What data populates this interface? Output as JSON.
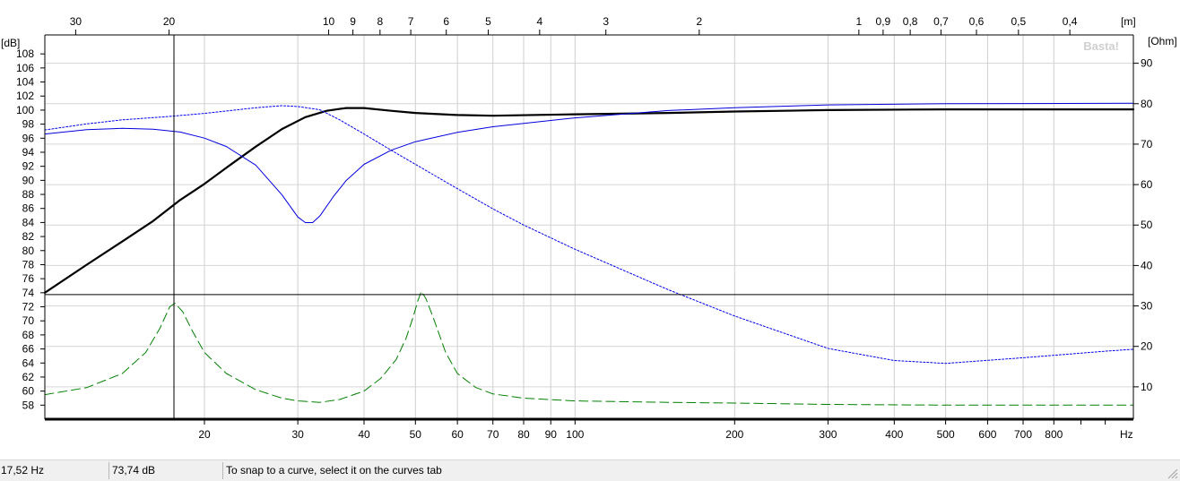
{
  "status_bar": {
    "frequency": "17,52 Hz",
    "level": "73,74 dB",
    "hint": "To snap to a curve, select it on the curves tab"
  },
  "chart_data": {
    "type": "line",
    "grid": true,
    "watermark": "Basta!",
    "x_axis": {
      "scale": "log",
      "unit_label": "Hz",
      "range": [
        10,
        1130
      ],
      "ticks": [
        {
          "value": 20,
          "label": "20"
        },
        {
          "value": 30,
          "label": "30"
        },
        {
          "value": 40,
          "label": "40"
        },
        {
          "value": 50,
          "label": "50"
        },
        {
          "value": 60,
          "label": "60"
        },
        {
          "value": 70,
          "label": "70"
        },
        {
          "value": 80,
          "label": "80"
        },
        {
          "value": 90,
          "label": "90"
        },
        {
          "value": 100,
          "label": "100"
        },
        {
          "value": 200,
          "label": "200"
        },
        {
          "value": 300,
          "label": "300"
        },
        {
          "value": 400,
          "label": "400"
        },
        {
          "value": 500,
          "label": "500"
        },
        {
          "value": 600,
          "label": "600"
        },
        {
          "value": 700,
          "label": "700"
        },
        {
          "value": 800,
          "label": "800"
        }
      ]
    },
    "top_axis": {
      "unit_label": "[m]",
      "note": "wavelength in metres (343/f)",
      "ticks": [
        {
          "value": 30,
          "label": "30"
        },
        {
          "value": 20,
          "label": "20"
        },
        {
          "value": 10,
          "label": "10"
        },
        {
          "value": 9,
          "label": "9"
        },
        {
          "value": 8,
          "label": "8"
        },
        {
          "value": 7,
          "label": "7"
        },
        {
          "value": 6,
          "label": "6"
        },
        {
          "value": 5,
          "label": "5"
        },
        {
          "value": 4,
          "label": "4"
        },
        {
          "value": 3,
          "label": "3"
        },
        {
          "value": 2,
          "label": "2"
        },
        {
          "value": 1,
          "label": "1"
        },
        {
          "value": 0.9,
          "label": "0,9"
        },
        {
          "value": 0.8,
          "label": "0,8"
        },
        {
          "value": 0.7,
          "label": "0,7"
        },
        {
          "value": 0.6,
          "label": "0,6"
        },
        {
          "value": 0.5,
          "label": "0,5"
        },
        {
          "value": 0.4,
          "label": "0,4"
        }
      ]
    },
    "y_left": {
      "unit_label": "[dB]",
      "range": [
        56.0,
        110.7
      ],
      "ticks": [
        58,
        60,
        62,
        64,
        66,
        68,
        70,
        72,
        74,
        76,
        78,
        80,
        82,
        84,
        86,
        88,
        90,
        92,
        94,
        96,
        98,
        100,
        102,
        104,
        106,
        108
      ]
    },
    "y_right": {
      "unit_label": "[Ohm]",
      "range": [
        2.0,
        97.0
      ],
      "ticks": [
        10,
        20,
        30,
        40,
        50,
        60,
        70,
        80,
        90
      ]
    },
    "cursor": {
      "x": 17.52,
      "y": 73.74
    },
    "series": [
      {
        "axis": "left",
        "color": "#000000",
        "style": "solid-thick",
        "points": [
          [
            10,
            74.0
          ],
          [
            12,
            78.0
          ],
          [
            14,
            81.3
          ],
          [
            16,
            84.2
          ],
          [
            18,
            87.2
          ],
          [
            20,
            89.5
          ],
          [
            22,
            91.8
          ],
          [
            25,
            94.8
          ],
          [
            28,
            97.3
          ],
          [
            31,
            99.0
          ],
          [
            34,
            99.9
          ],
          [
            37,
            100.3
          ],
          [
            40,
            100.3
          ],
          [
            45,
            99.9
          ],
          [
            50,
            99.6
          ],
          [
            60,
            99.3
          ],
          [
            70,
            99.2
          ],
          [
            100,
            99.4
          ],
          [
            150,
            99.6
          ],
          [
            200,
            99.8
          ],
          [
            300,
            100.0
          ],
          [
            500,
            100.1
          ],
          [
            1130,
            100.1
          ]
        ]
      },
      {
        "axis": "right",
        "color": "#0000dd",
        "style": "solid",
        "points": [
          [
            10,
            72.5
          ],
          [
            12,
            73.6
          ],
          [
            14,
            73.9
          ],
          [
            16,
            73.7
          ],
          [
            18,
            73.0
          ],
          [
            20,
            71.5
          ],
          [
            22,
            69.4
          ],
          [
            25,
            64.8
          ],
          [
            28,
            57.5
          ],
          [
            30,
            52.0
          ],
          [
            31,
            50.6
          ],
          [
            32,
            50.6
          ],
          [
            33,
            52.2
          ],
          [
            35,
            57.0
          ],
          [
            37,
            61.0
          ],
          [
            40,
            65.0
          ],
          [
            45,
            68.5
          ],
          [
            50,
            70.6
          ],
          [
            60,
            72.9
          ],
          [
            70,
            74.3
          ],
          [
            100,
            76.5
          ],
          [
            150,
            78.3
          ],
          [
            200,
            79.0
          ],
          [
            300,
            79.7
          ],
          [
            500,
            80.0
          ],
          [
            1130,
            80.1
          ]
        ]
      },
      {
        "axis": "right",
        "color": "#0000ee",
        "style": "dotted",
        "points": [
          [
            10,
            73.5
          ],
          [
            12,
            75.0
          ],
          [
            14,
            76.0
          ],
          [
            17,
            76.8
          ],
          [
            20,
            77.6
          ],
          [
            25,
            79.0
          ],
          [
            28,
            79.5
          ],
          [
            30,
            79.3
          ],
          [
            33,
            78.5
          ],
          [
            36,
            76.0
          ],
          [
            40,
            72.5
          ],
          [
            45,
            68.5
          ],
          [
            50,
            65.0
          ],
          [
            60,
            59.0
          ],
          [
            70,
            54.0
          ],
          [
            80,
            50.0
          ],
          [
            100,
            44.0
          ],
          [
            150,
            34.0
          ],
          [
            200,
            27.5
          ],
          [
            300,
            19.5
          ],
          [
            400,
            16.5
          ],
          [
            500,
            15.8
          ],
          [
            700,
            17.2
          ],
          [
            1000,
            18.8
          ],
          [
            1130,
            19.3
          ]
        ]
      },
      {
        "axis": "left",
        "color": "#008000",
        "style": "dashed",
        "points": [
          [
            10,
            59.5
          ],
          [
            12,
            60.5
          ],
          [
            14,
            62.5
          ],
          [
            15.5,
            65.5
          ],
          [
            16.5,
            69.0
          ],
          [
            17.2,
            72.0
          ],
          [
            17.6,
            72.5
          ],
          [
            18.2,
            71.3
          ],
          [
            19,
            68.5
          ],
          [
            20,
            65.5
          ],
          [
            22,
            62.5
          ],
          [
            25,
            60.2
          ],
          [
            28,
            59.0
          ],
          [
            30,
            58.6
          ],
          [
            33,
            58.4
          ],
          [
            36,
            58.8
          ],
          [
            40,
            60.0
          ],
          [
            43,
            61.8
          ],
          [
            46,
            64.5
          ],
          [
            48,
            67.5
          ],
          [
            49.5,
            70.5
          ],
          [
            50.5,
            72.8
          ],
          [
            51.3,
            74.2
          ],
          [
            52.3,
            73.2
          ],
          [
            54,
            70.5
          ],
          [
            57,
            65.5
          ],
          [
            60,
            62.5
          ],
          [
            65,
            60.5
          ],
          [
            70,
            59.6
          ],
          [
            80,
            59.0
          ],
          [
            100,
            58.6
          ],
          [
            150,
            58.4
          ],
          [
            200,
            58.3
          ],
          [
            300,
            58.1
          ],
          [
            500,
            58.0
          ],
          [
            1130,
            58.0
          ]
        ]
      }
    ]
  }
}
